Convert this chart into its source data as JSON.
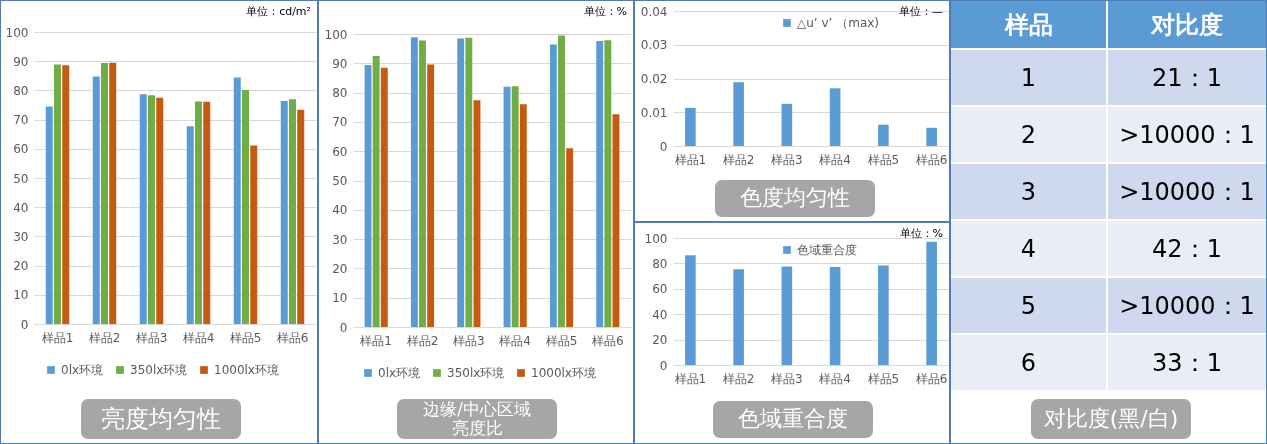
{
  "chart_data": [
    {
      "type": "bar",
      "title": "亮度均匀性",
      "categories": [
        "样品1",
        "样品2",
        "样品3",
        "样品4",
        "样品5",
        "样品6"
      ],
      "series": [
        {
          "name": "0lx环境",
          "color": "#5b9bd5",
          "values": [
            74.5,
            84.8,
            78.7,
            67.7,
            84.4,
            76.4
          ]
        },
        {
          "name": "350lx环境",
          "color": "#70ad47",
          "values": [
            88.9,
            89.4,
            78.3,
            76.2,
            80.1,
            77.0
          ]
        },
        {
          "name": "1000lx环境",
          "color": "#c55a11",
          "values": [
            88.6,
            89.5,
            77.5,
            76.1,
            61.1,
            73.4
          ]
        }
      ],
      "ylim": [
        0,
        100
      ],
      "yticks": [
        0,
        10,
        20,
        30,
        40,
        50,
        60,
        70,
        80,
        90,
        100
      ],
      "grid": "y",
      "legend": "bottom",
      "annotations": [
        "单位：cd/m²"
      ]
    },
    {
      "type": "bar",
      "title": "边缘/中心区域亮度比",
      "categories": [
        "样品1",
        "样品2",
        "样品3",
        "样品4",
        "样品5",
        "样品6"
      ],
      "series": [
        {
          "name": "0lx环境",
          "color": "#5b9bd5",
          "values": [
            89.4,
            98.9,
            98.5,
            82.0,
            96.4,
            97.6
          ]
        },
        {
          "name": "350lx环境",
          "color": "#70ad47",
          "values": [
            92.5,
            97.8,
            98.7,
            82.2,
            99.5,
            97.9
          ]
        },
        {
          "name": "1000lx环境",
          "color": "#c55a11",
          "values": [
            88.5,
            89.6,
            77.4,
            76.0,
            61.0,
            72.6
          ]
        }
      ],
      "ylim": [
        0,
        100
      ],
      "yticks": [
        0,
        10,
        20,
        30,
        40,
        50,
        60,
        70,
        80,
        90,
        100
      ],
      "grid": "y",
      "legend": "bottom",
      "annotations": [
        "单位：%"
      ]
    },
    {
      "type": "bar",
      "title": "色度均匀性",
      "categories": [
        "样品1",
        "样品2",
        "样品3",
        "样品4",
        "样品5",
        "样品6"
      ],
      "series": [
        {
          "name": "△u’ v’ （max)",
          "color": "#5b9bd5",
          "values": [
            0.0113,
            0.0189,
            0.0125,
            0.0171,
            0.0063,
            0.0054
          ]
        }
      ],
      "ylim": [
        0,
        0.04
      ],
      "yticks": [
        0,
        0.01,
        0.02,
        0.03,
        0.04
      ],
      "grid": "y",
      "legend": "top",
      "annotations": [
        "单位：—"
      ]
    },
    {
      "type": "bar",
      "title": "色域重合度",
      "categories": [
        "样品1",
        "样品2",
        "样品3",
        "样品4",
        "样品5",
        "样品6"
      ],
      "series": [
        {
          "name": "色域重合度",
          "color": "#5b9bd5",
          "values": [
            86.4,
            75.4,
            77.5,
            77.2,
            78.3,
            97.1
          ]
        }
      ],
      "ylim": [
        0,
        100
      ],
      "yticks": [
        0,
        20,
        40,
        60,
        80,
        100
      ],
      "grid": "y",
      "legend": "top",
      "annotations": [
        "单位：%"
      ]
    },
    {
      "type": "heatmap",
      "title": "对比度(黑/白)",
      "ylabel": "样品",
      "categories": [
        "对比度"
      ],
      "y_categories": [
        "1",
        "2",
        "3",
        "4",
        "5",
        "6"
      ],
      "cells": [
        [
          null
        ],
        [
          null
        ],
        [
          null
        ],
        [
          null
        ],
        [
          null
        ],
        [
          null
        ]
      ],
      "cell_labels": [
        [
          "21：1"
        ],
        [
          ">10000：1"
        ],
        [
          ">10000：1"
        ],
        [
          "42：1"
        ],
        [
          ">10000：1"
        ],
        [
          "33：1"
        ]
      ]
    }
  ]
}
